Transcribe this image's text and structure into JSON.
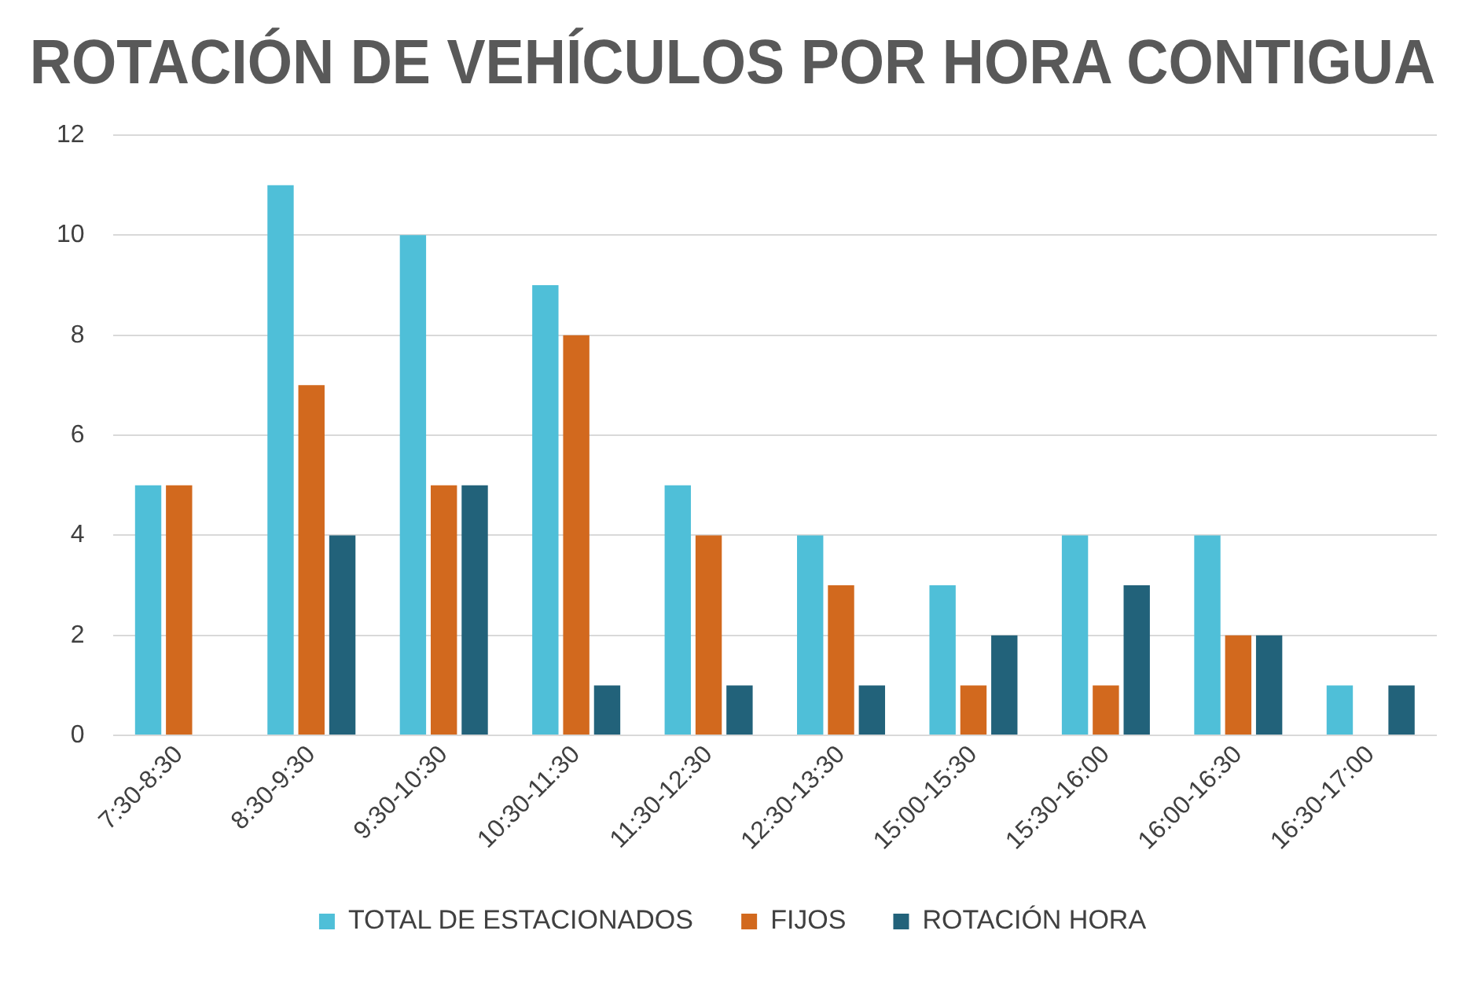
{
  "chart_data": {
    "type": "bar",
    "title": "ROTACIÓN DE VEHÍCULOS POR HORA CONTIGUA",
    "categories": [
      "7:30-8:30",
      "8:30-9:30",
      "9:30-10:30",
      "10:30-11:30",
      "11:30-12:30",
      "12:30-13:30",
      "15:00-15:30",
      "15:30-16:00",
      "16:00-16:30",
      "16:30-17:00"
    ],
    "series": [
      {
        "name": "TOTAL DE ESTACIONADOS",
        "color": "#4fbfd8",
        "values": [
          5,
          11,
          10,
          9,
          5,
          4,
          3,
          4,
          4,
          1
        ]
      },
      {
        "name": "FIJOS",
        "color": "#d2691e",
        "values": [
          5,
          7,
          5,
          8,
          4,
          3,
          1,
          1,
          2,
          0
        ]
      },
      {
        "name": "ROTACIÓN HORA",
        "color": "#22627a",
        "values": [
          0,
          4,
          5,
          1,
          1,
          1,
          2,
          3,
          2,
          1
        ]
      }
    ],
    "ylim": [
      0,
      12
    ],
    "yticks": [
      0,
      2,
      4,
      6,
      8,
      10,
      12
    ],
    "grid": "y",
    "legend": "bottom"
  }
}
